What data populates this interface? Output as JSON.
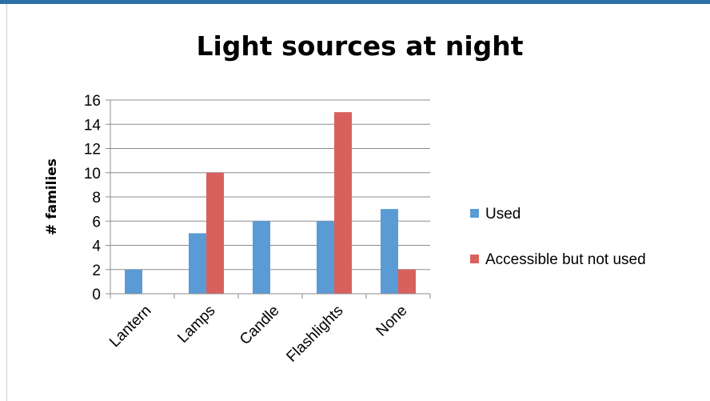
{
  "chart_data": {
    "type": "bar",
    "title": "Light sources at night",
    "xlabel": "",
    "ylabel": "# families",
    "categories": [
      "Lantern",
      "Lamps",
      "Candle",
      "Flashlights",
      "None"
    ],
    "series": [
      {
        "name": "Used",
        "values": [
          2,
          5,
          6,
          6,
          7
        ],
        "color": "#5b9bd5"
      },
      {
        "name": "Accessible but not used",
        "values": [
          0,
          10,
          0,
          15,
          2
        ],
        "color": "#d9615d"
      }
    ],
    "ylim": [
      0,
      16
    ],
    "yticks": [
      0,
      2,
      4,
      6,
      8,
      10,
      12,
      14,
      16
    ],
    "grid": true,
    "legend": "right"
  },
  "colors": {
    "header_bar": "#2e6fa8",
    "gridline": "#8c8c8c",
    "axis": "#8c8c8c"
  }
}
